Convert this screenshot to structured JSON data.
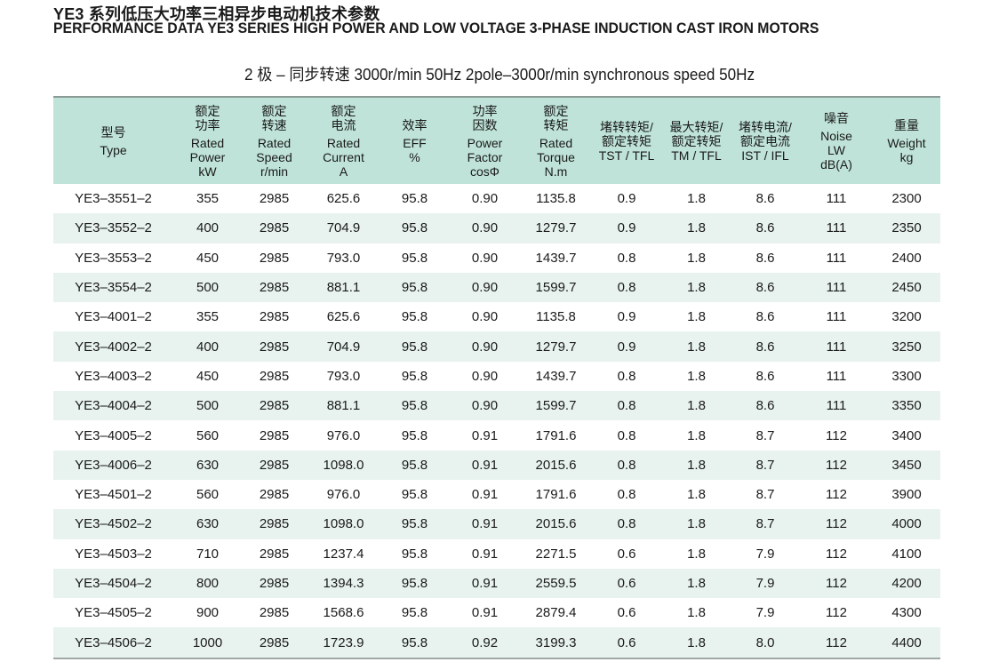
{
  "title_cn": "YE3 系列低压大功率三相异步电动机技术参数",
  "title_en": "PERFORMANCE DATA YE3 SERIES HIGH POWER AND LOW VOLTAGE 3-PHASE  INDUCTION CAST IRON MOTORS",
  "subtitle": "2 极 – 同步转速 3000r/min 50Hz  2pole–3000r/min synchronous speed 50Hz",
  "columns": [
    {
      "zh": [
        "型号"
      ],
      "en": [
        "Type"
      ]
    },
    {
      "zh": [
        "额定",
        "功率"
      ],
      "en": [
        "Rated",
        "Power",
        "kW"
      ]
    },
    {
      "zh": [
        "额定",
        "转速"
      ],
      "en": [
        "Rated",
        "Speed",
        "r/min"
      ]
    },
    {
      "zh": [
        "额定",
        "电流"
      ],
      "en": [
        "Rated",
        "Current",
        "A"
      ]
    },
    {
      "zh": [
        "效率"
      ],
      "en": [
        "EFF",
        "%"
      ]
    },
    {
      "zh": [
        "功率",
        "因数"
      ],
      "en": [
        "Power",
        "Factor",
        "cosΦ"
      ]
    },
    {
      "zh": [
        "额定",
        "转矩"
      ],
      "en": [
        "Rated",
        "Torque",
        "N.m"
      ]
    },
    {
      "zh": [
        "堵转转矩/",
        "额定转矩"
      ],
      "en": [
        "TST / TFL"
      ]
    },
    {
      "zh": [
        "最大转矩/",
        "额定转矩"
      ],
      "en": [
        "TM / TFL"
      ]
    },
    {
      "zh": [
        "堵转电流/",
        "额定电流"
      ],
      "en": [
        "IST / IFL"
      ]
    },
    {
      "zh": [
        "噪音"
      ],
      "en": [
        "Noise",
        "LW",
        "dB(A)"
      ]
    },
    {
      "zh": [
        "重量"
      ],
      "en": [
        "Weight",
        "kg"
      ]
    }
  ],
  "rows": [
    [
      "YE3–3551–2",
      "355",
      "2985",
      "625.6",
      "95.8",
      "0.90",
      "1135.8",
      "0.9",
      "1.8",
      "8.6",
      "111",
      "2300"
    ],
    [
      "YE3–3552–2",
      "400",
      "2985",
      "704.9",
      "95.8",
      "0.90",
      "1279.7",
      "0.9",
      "1.8",
      "8.6",
      "111",
      "2350"
    ],
    [
      "YE3–3553–2",
      "450",
      "2985",
      "793.0",
      "95.8",
      "0.90",
      "1439.7",
      "0.8",
      "1.8",
      "8.6",
      "111",
      "2400"
    ],
    [
      "YE3–3554–2",
      "500",
      "2985",
      "881.1",
      "95.8",
      "0.90",
      "1599.7",
      "0.8",
      "1.8",
      "8.6",
      "111",
      "2450"
    ],
    [
      "YE3–4001–2",
      "355",
      "2985",
      "625.6",
      "95.8",
      "0.90",
      "1135.8",
      "0.9",
      "1.8",
      "8.6",
      "111",
      "3200"
    ],
    [
      "YE3–4002–2",
      "400",
      "2985",
      "704.9",
      "95.8",
      "0.90",
      "1279.7",
      "0.9",
      "1.8",
      "8.6",
      "111",
      "3250"
    ],
    [
      "YE3–4003–2",
      "450",
      "2985",
      "793.0",
      "95.8",
      "0.90",
      "1439.7",
      "0.8",
      "1.8",
      "8.6",
      "111",
      "3300"
    ],
    [
      "YE3–4004–2",
      "500",
      "2985",
      "881.1",
      "95.8",
      "0.90",
      "1599.7",
      "0.8",
      "1.8",
      "8.6",
      "111",
      "3350"
    ],
    [
      "YE3–4005–2",
      "560",
      "2985",
      "976.0",
      "95.8",
      "0.91",
      "1791.6",
      "0.8",
      "1.8",
      "8.7",
      "112",
      "3400"
    ],
    [
      "YE3–4006–2",
      "630",
      "2985",
      "1098.0",
      "95.8",
      "0.91",
      "2015.6",
      "0.8",
      "1.8",
      "8.7",
      "112",
      "3450"
    ],
    [
      "YE3–4501–2",
      "560",
      "2985",
      "976.0",
      "95.8",
      "0.91",
      "1791.6",
      "0.8",
      "1.8",
      "8.7",
      "112",
      "3900"
    ],
    [
      "YE3–4502–2",
      "630",
      "2985",
      "1098.0",
      "95.8",
      "0.91",
      "2015.6",
      "0.8",
      "1.8",
      "8.7",
      "112",
      "4000"
    ],
    [
      "YE3–4503–2",
      "710",
      "2985",
      "1237.4",
      "95.8",
      "0.91",
      "2271.5",
      "0.6",
      "1.8",
      "7.9",
      "112",
      "4100"
    ],
    [
      "YE3–4504–2",
      "800",
      "2985",
      "1394.3",
      "95.8",
      "0.91",
      "2559.5",
      "0.6",
      "1.8",
      "7.9",
      "112",
      "4200"
    ],
    [
      "YE3–4505–2",
      "900",
      "2985",
      "1568.6",
      "95.8",
      "0.91",
      "2879.4",
      "0.6",
      "1.8",
      "7.9",
      "112",
      "4300"
    ],
    [
      "YE3–4506–2",
      "1000",
      "2985",
      "1723.9",
      "95.8",
      "0.92",
      "3199.3",
      "0.6",
      "1.8",
      "8.0",
      "112",
      "4400"
    ]
  ]
}
